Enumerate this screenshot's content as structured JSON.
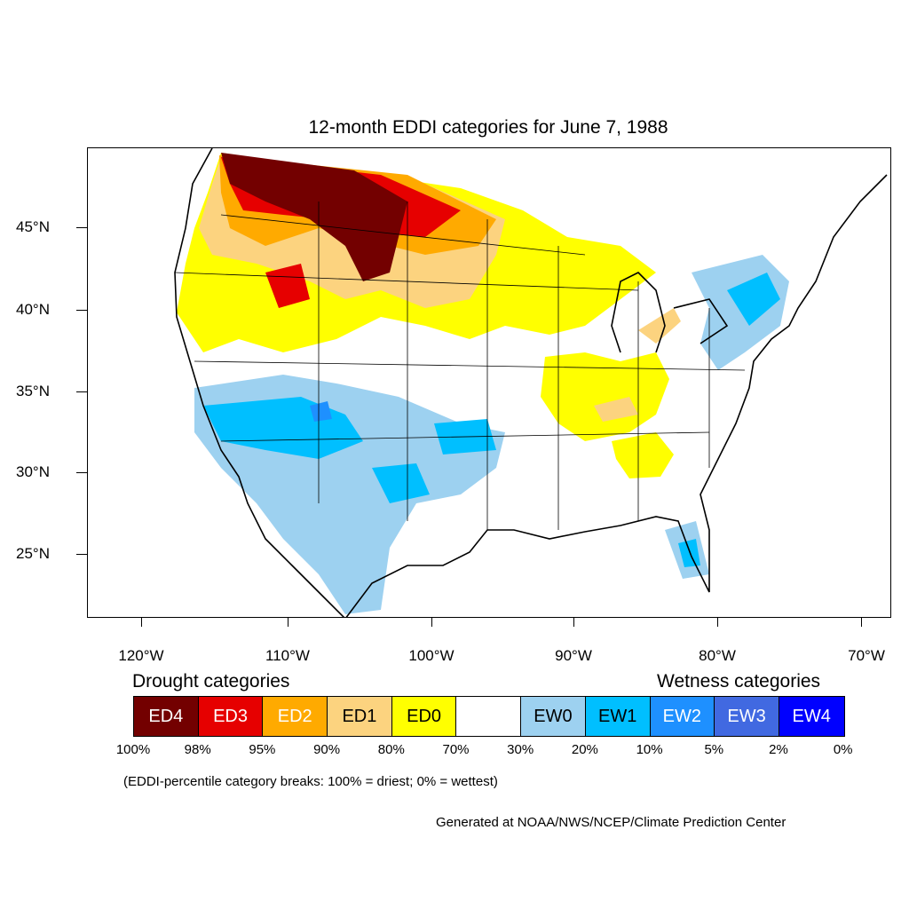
{
  "title": "12-month EDDI categories for June 7, 1988",
  "lat_labels": [
    "45°N",
    "40°N",
    "35°N",
    "30°N",
    "25°N"
  ],
  "lon_labels": [
    "120°W",
    "110°W",
    "100°W",
    "90°W",
    "80°W",
    "70°W"
  ],
  "legend": {
    "drought_heading": "Drought categories",
    "wetness_heading": "Wetness categories",
    "categories": [
      {
        "label": "ED4",
        "color": "#730000",
        "text_color": "#ffffff"
      },
      {
        "label": "ED3",
        "color": "#e60000",
        "text_color": "#ffffff"
      },
      {
        "label": "ED2",
        "color": "#ffaa00",
        "text_color": "#ffffff"
      },
      {
        "label": "ED1",
        "color": "#fcd37f",
        "text_color": "#000000"
      },
      {
        "label": "ED0",
        "color": "#ffff00",
        "text_color": "#000000"
      },
      {
        "label": "",
        "color": "#ffffff",
        "text_color": "#000000"
      },
      {
        "label": "EW0",
        "color": "#9dd1f0",
        "text_color": "#000000"
      },
      {
        "label": "EW1",
        "color": "#00bfff",
        "text_color": "#000000"
      },
      {
        "label": "EW2",
        "color": "#1e90ff",
        "text_color": "#ffffff"
      },
      {
        "label": "EW3",
        "color": "#4169e1",
        "text_color": "#ffffff"
      },
      {
        "label": "EW4",
        "color": "#0000ff",
        "text_color": "#ffffff"
      }
    ],
    "percentiles": [
      "100%",
      "98%",
      "95%",
      "90%",
      "80%",
      "70%",
      "30%",
      "20%",
      "10%",
      "5%",
      "2%",
      "0%"
    ]
  },
  "note": "(EDDI-percentile category breaks: 100% = driest; 0% = wettest)",
  "credit": "Generated at NOAA/NWS/NCEP/Climate Prediction Center"
}
